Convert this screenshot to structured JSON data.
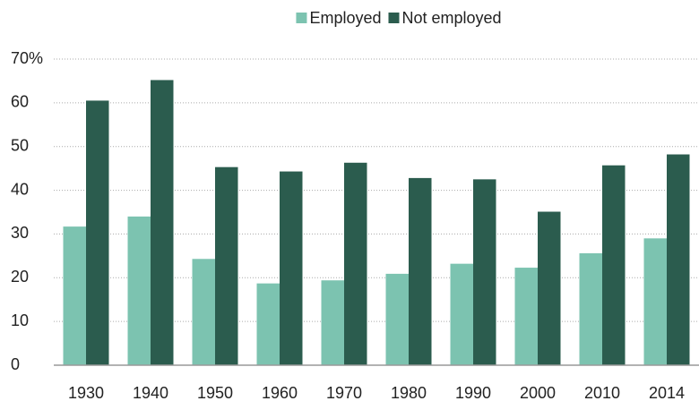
{
  "chart_data": {
    "type": "bar",
    "categories": [
      "1930",
      "1940",
      "1950",
      "1960",
      "1970",
      "1980",
      "1990",
      "2000",
      "2010",
      "2014"
    ],
    "series": [
      {
        "name": "Employed",
        "color": "#7cc3b0",
        "values": [
          31.7,
          34.0,
          24.3,
          18.7,
          19.4,
          20.9,
          23.2,
          22.3,
          25.6,
          29.0
        ]
      },
      {
        "name": "Not employed",
        "color": "#2b5c4e",
        "values": [
          60.5,
          65.2,
          45.3,
          44.3,
          46.3,
          42.8,
          42.5,
          35.1,
          45.7,
          48.2
        ]
      }
    ],
    "ylim": [
      0,
      70
    ],
    "yticks": [
      0,
      10,
      20,
      30,
      40,
      50,
      60,
      {
        "value": 70,
        "label": "70%"
      }
    ],
    "grid": true,
    "legend": "top"
  }
}
